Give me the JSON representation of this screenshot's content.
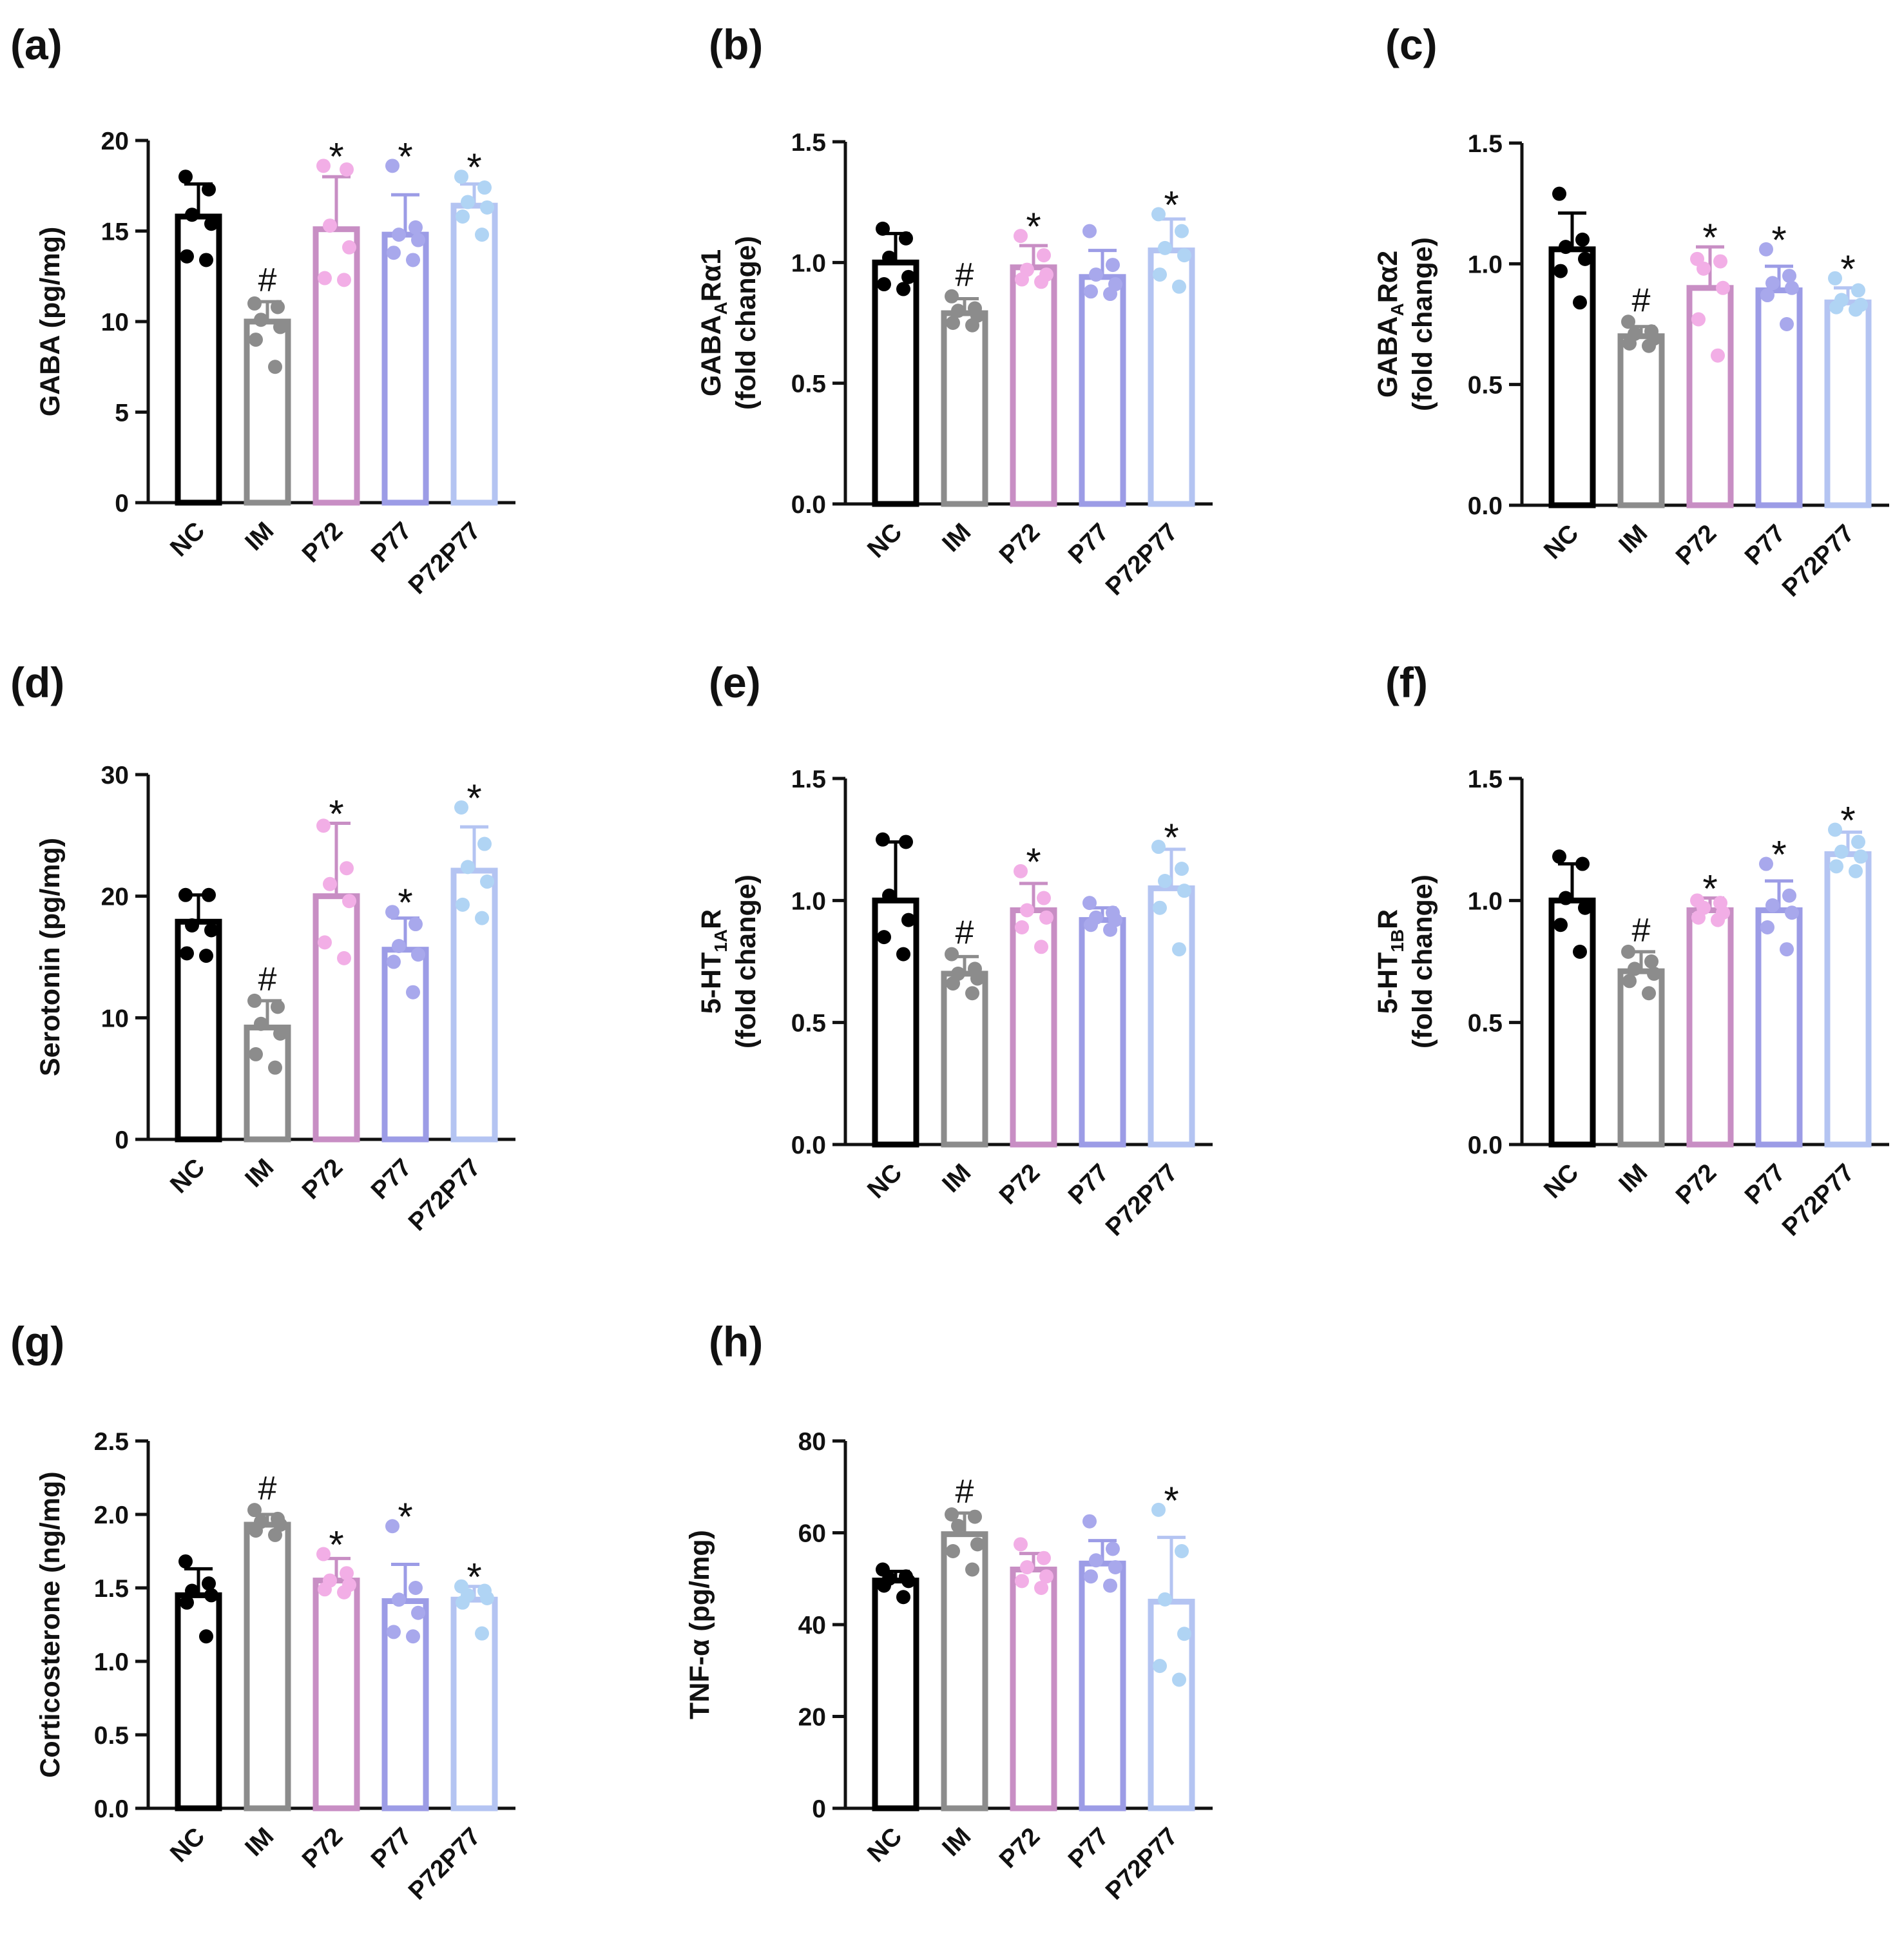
{
  "figure": {
    "group_colors": {
      "NC": "#000000",
      "IM": "#8C8C8C",
      "P72": "#C88EC4",
      "P77": "#9C9CE6",
      "P72P77": "#B4C4F2"
    },
    "point_colors": {
      "NC": "#000000",
      "IM": "#8C8C8C",
      "P72": "#F2AEE6",
      "P77": "#A8A8EC",
      "P72P77": "#B0D4F4"
    }
  },
  "chart_data": [
    {
      "type": "bar",
      "panel": "(a)",
      "categories": [
        "NC",
        "IM",
        "P72",
        "P77",
        "P72P77"
      ],
      "ylabel": [
        "GABA (pg/mg)"
      ],
      "ylim": [
        0,
        20
      ],
      "yticks": [
        0,
        5,
        10,
        15,
        20
      ],
      "ytick_labels": [
        "0",
        "5",
        "10",
        "15",
        "20"
      ],
      "values": [
        15.8,
        10.0,
        15.1,
        14.8,
        16.4
      ],
      "errors": [
        1.8,
        1.1,
        2.9,
        2.2,
        1.2
      ],
      "points": [
        [
          18.0,
          17.3,
          15.9,
          15.4,
          13.6,
          13.4
        ],
        [
          11.0,
          10.8,
          10.1,
          9.7,
          9.0,
          7.5
        ],
        [
          18.6,
          18.4,
          15.3,
          14.1,
          12.4,
          12.3
        ],
        [
          18.6,
          15.2,
          14.8,
          14.5,
          13.8,
          13.4
        ],
        [
          18.0,
          17.4,
          16.6,
          16.3,
          15.8,
          14.8
        ]
      ],
      "annotations": [
        "",
        "#",
        "*",
        "*",
        "*"
      ]
    },
    {
      "type": "bar",
      "panel": "(b)",
      "categories": [
        "NC",
        "IM",
        "P72",
        "P77",
        "P72P77"
      ],
      "ylabel": [
        "GABA",
        "A",
        "Rα1",
        "(fold change)"
      ],
      "ylim": [
        0,
        1.5
      ],
      "yticks": [
        0,
        0.5,
        1.0,
        1.5
      ],
      "ytick_labels": [
        "0.0",
        "0.5",
        "1.0",
        "1.5"
      ],
      "values": [
        1.0,
        0.79,
        0.98,
        0.94,
        1.05
      ],
      "errors": [
        0.12,
        0.06,
        0.09,
        0.11,
        0.13
      ],
      "points": [
        [
          1.14,
          1.1,
          1.02,
          0.94,
          0.91,
          0.89
        ],
        [
          0.86,
          0.81,
          0.8,
          0.78,
          0.75,
          0.74
        ],
        [
          1.11,
          1.03,
          0.97,
          0.95,
          0.93,
          0.92
        ],
        [
          1.13,
          0.99,
          0.95,
          0.91,
          0.88,
          0.87
        ],
        [
          1.2,
          1.13,
          1.06,
          1.03,
          0.95,
          0.9
        ]
      ],
      "annotations": [
        "",
        "#",
        "*",
        "",
        "*"
      ]
    },
    {
      "type": "bar",
      "panel": "(c)",
      "categories": [
        "NC",
        "IM",
        "P72",
        "P77",
        "P72P77"
      ],
      "ylabel": [
        "GABA",
        "A",
        "Rα2",
        "(fold change)"
      ],
      "ylim": [
        0,
        1.5
      ],
      "yticks": [
        0,
        0.5,
        1.0,
        1.5
      ],
      "ytick_labels": [
        "0.0",
        "0.5",
        "1.0",
        "1.5"
      ],
      "values": [
        1.06,
        0.7,
        0.9,
        0.89,
        0.84
      ],
      "errors": [
        0.15,
        0.04,
        0.17,
        0.1,
        0.06
      ],
      "points": [
        [
          1.29,
          1.1,
          1.07,
          1.02,
          0.97,
          0.84
        ],
        [
          0.76,
          0.72,
          0.71,
          0.69,
          0.67,
          0.66
        ],
        [
          1.02,
          1.01,
          0.98,
          0.9,
          0.77,
          0.62
        ],
        [
          1.06,
          0.95,
          0.92,
          0.9,
          0.87,
          0.75
        ],
        [
          0.94,
          0.89,
          0.85,
          0.83,
          0.82,
          0.81
        ]
      ],
      "annotations": [
        "",
        "#",
        "*",
        "*",
        "*"
      ]
    },
    {
      "type": "bar",
      "panel": "(d)",
      "categories": [
        "NC",
        "IM",
        "P72",
        "P77",
        "P72P77"
      ],
      "ylabel": [
        "Serotonin (pg/mg)"
      ],
      "ylim": [
        0,
        30
      ],
      "yticks": [
        0,
        10,
        20,
        30
      ],
      "ytick_labels": [
        "0",
        "10",
        "20",
        "30"
      ],
      "values": [
        17.9,
        9.2,
        20.0,
        15.6,
        22.1
      ],
      "errors": [
        2.2,
        2.2,
        6.0,
        2.6,
        3.6
      ],
      "points": [
        [
          20.1,
          20.1,
          17.6,
          17.2,
          15.3,
          15.1
        ],
        [
          11.4,
          10.9,
          9.5,
          8.7,
          7.0,
          5.9
        ],
        [
          25.8,
          22.3,
          21.0,
          19.6,
          16.2,
          14.9
        ],
        [
          18.7,
          17.7,
          15.9,
          15.2,
          14.6,
          12.1
        ],
        [
          27.3,
          24.3,
          22.4,
          21.2,
          19.3,
          18.2
        ]
      ],
      "annotations": [
        "",
        "#",
        "*",
        "*",
        "*"
      ]
    },
    {
      "type": "bar",
      "panel": "(e)",
      "categories": [
        "NC",
        "IM",
        "P72",
        "P77",
        "P72P77"
      ],
      "ylabel": [
        "5-HT",
        "1A",
        "R",
        "(fold change)"
      ],
      "ylim": [
        0,
        1.5
      ],
      "yticks": [
        0,
        0.5,
        1.0,
        1.5
      ],
      "ytick_labels": [
        "0.0",
        "0.5",
        "1.0",
        "1.5"
      ],
      "values": [
        1.0,
        0.7,
        0.96,
        0.92,
        1.05
      ],
      "errors": [
        0.24,
        0.07,
        0.11,
        0.05,
        0.16
      ],
      "points": [
        [
          1.25,
          1.24,
          1.02,
          0.92,
          0.85,
          0.78
        ],
        [
          0.78,
          0.72,
          0.7,
          0.68,
          0.66,
          0.62
        ],
        [
          1.12,
          1.01,
          0.96,
          0.93,
          0.89,
          0.81
        ],
        [
          0.99,
          0.95,
          0.93,
          0.92,
          0.9,
          0.88
        ],
        [
          1.22,
          1.13,
          1.08,
          1.04,
          0.97,
          0.8
        ]
      ],
      "annotations": [
        "",
        "#",
        "*",
        "",
        "*"
      ]
    },
    {
      "type": "bar",
      "panel": "(f)",
      "categories": [
        "NC",
        "IM",
        "P72",
        "P77",
        "P72P77"
      ],
      "ylabel": [
        "5-HT",
        "1B",
        "R",
        "(fold change)"
      ],
      "ylim": [
        0,
        1.5
      ],
      "yticks": [
        0,
        0.5,
        1.0,
        1.5
      ],
      "ytick_labels": [
        "0.0",
        "0.5",
        "1.0",
        "1.5"
      ],
      "values": [
        1.0,
        0.71,
        0.96,
        0.96,
        1.19
      ],
      "errors": [
        0.15,
        0.08,
        0.05,
        0.12,
        0.09
      ],
      "points": [
        [
          1.18,
          1.15,
          1.01,
          0.97,
          0.9,
          0.79
        ],
        [
          0.79,
          0.75,
          0.72,
          0.7,
          0.67,
          0.62
        ],
        [
          1.0,
          0.99,
          0.97,
          0.95,
          0.93,
          0.92
        ],
        [
          1.15,
          1.02,
          0.98,
          0.95,
          0.89,
          0.8
        ],
        [
          1.29,
          1.24,
          1.2,
          1.18,
          1.14,
          1.12
        ]
      ],
      "annotations": [
        "",
        "#",
        "*",
        "*",
        "*"
      ]
    },
    {
      "type": "bar",
      "panel": "(g)",
      "categories": [
        "NC",
        "IM",
        "P72",
        "P77",
        "P72P77"
      ],
      "ylabel": [
        "Corticosterone (ng/mg)"
      ],
      "ylim": [
        0,
        2.5
      ],
      "yticks": [
        0,
        0.5,
        1.0,
        1.5,
        2.0,
        2.5
      ],
      "ytick_labels": [
        "0.0",
        "0.5",
        "1.0",
        "1.5",
        "2.0",
        "2.5"
      ],
      "values": [
        1.45,
        1.93,
        1.55,
        1.41,
        1.42
      ],
      "errors": [
        0.18,
        0.07,
        0.15,
        0.25,
        0.09
      ],
      "points": [
        [
          1.68,
          1.53,
          1.48,
          1.45,
          1.4,
          1.17
        ],
        [
          2.03,
          1.97,
          1.95,
          1.93,
          1.89,
          1.86
        ],
        [
          1.73,
          1.6,
          1.55,
          1.52,
          1.49,
          1.47
        ],
        [
          1.92,
          1.5,
          1.42,
          1.33,
          1.2,
          1.17
        ],
        [
          1.51,
          1.48,
          1.45,
          1.43,
          1.4,
          1.19
        ]
      ],
      "annotations": [
        "",
        "#",
        "*",
        "*",
        "*"
      ]
    },
    {
      "type": "bar",
      "panel": "(h)",
      "categories": [
        "NC",
        "IM",
        "P72",
        "P77",
        "P72P77"
      ],
      "ylabel": [
        "TNF-α (pg/mg)"
      ],
      "ylim": [
        0,
        80
      ],
      "yticks": [
        0,
        20,
        40,
        60,
        80
      ],
      "ytick_labels": [
        "0",
        "20",
        "40",
        "60",
        "80"
      ],
      "values": [
        49.6,
        59.7,
        52.0,
        53.3,
        45.0
      ],
      "errors": [
        2.0,
        4.6,
        3.5,
        5.0,
        14.0
      ],
      "points": [
        [
          52.0,
          50.5,
          50.0,
          49.5,
          48.5,
          46.0
        ],
        [
          64.0,
          63.5,
          61.5,
          57.5,
          56.0,
          52.0
        ],
        [
          57.5,
          54.5,
          52.5,
          50.5,
          49.5,
          48.0
        ],
        [
          62.5,
          56.5,
          54.0,
          52.5,
          50.5,
          48.5
        ],
        [
          65.0,
          56.0,
          45.5,
          38.0,
          31.0,
          28.0
        ]
      ],
      "annotations": [
        "",
        "#",
        "",
        "",
        "*"
      ]
    }
  ]
}
